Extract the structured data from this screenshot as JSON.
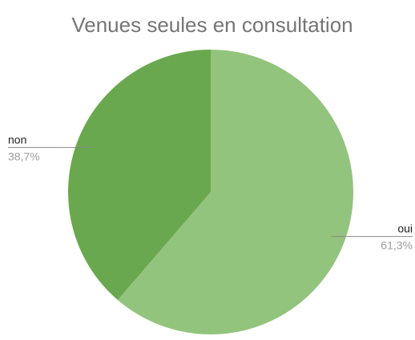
{
  "chart_data": {
    "type": "pie",
    "title": "Venues seules en consultation",
    "categories": [
      "oui",
      "non"
    ],
    "values": [
      61.3,
      38.7
    ],
    "value_labels": [
      "61,3%",
      "38,7%"
    ],
    "colors": [
      "#93c47d",
      "#6aa84f"
    ]
  }
}
